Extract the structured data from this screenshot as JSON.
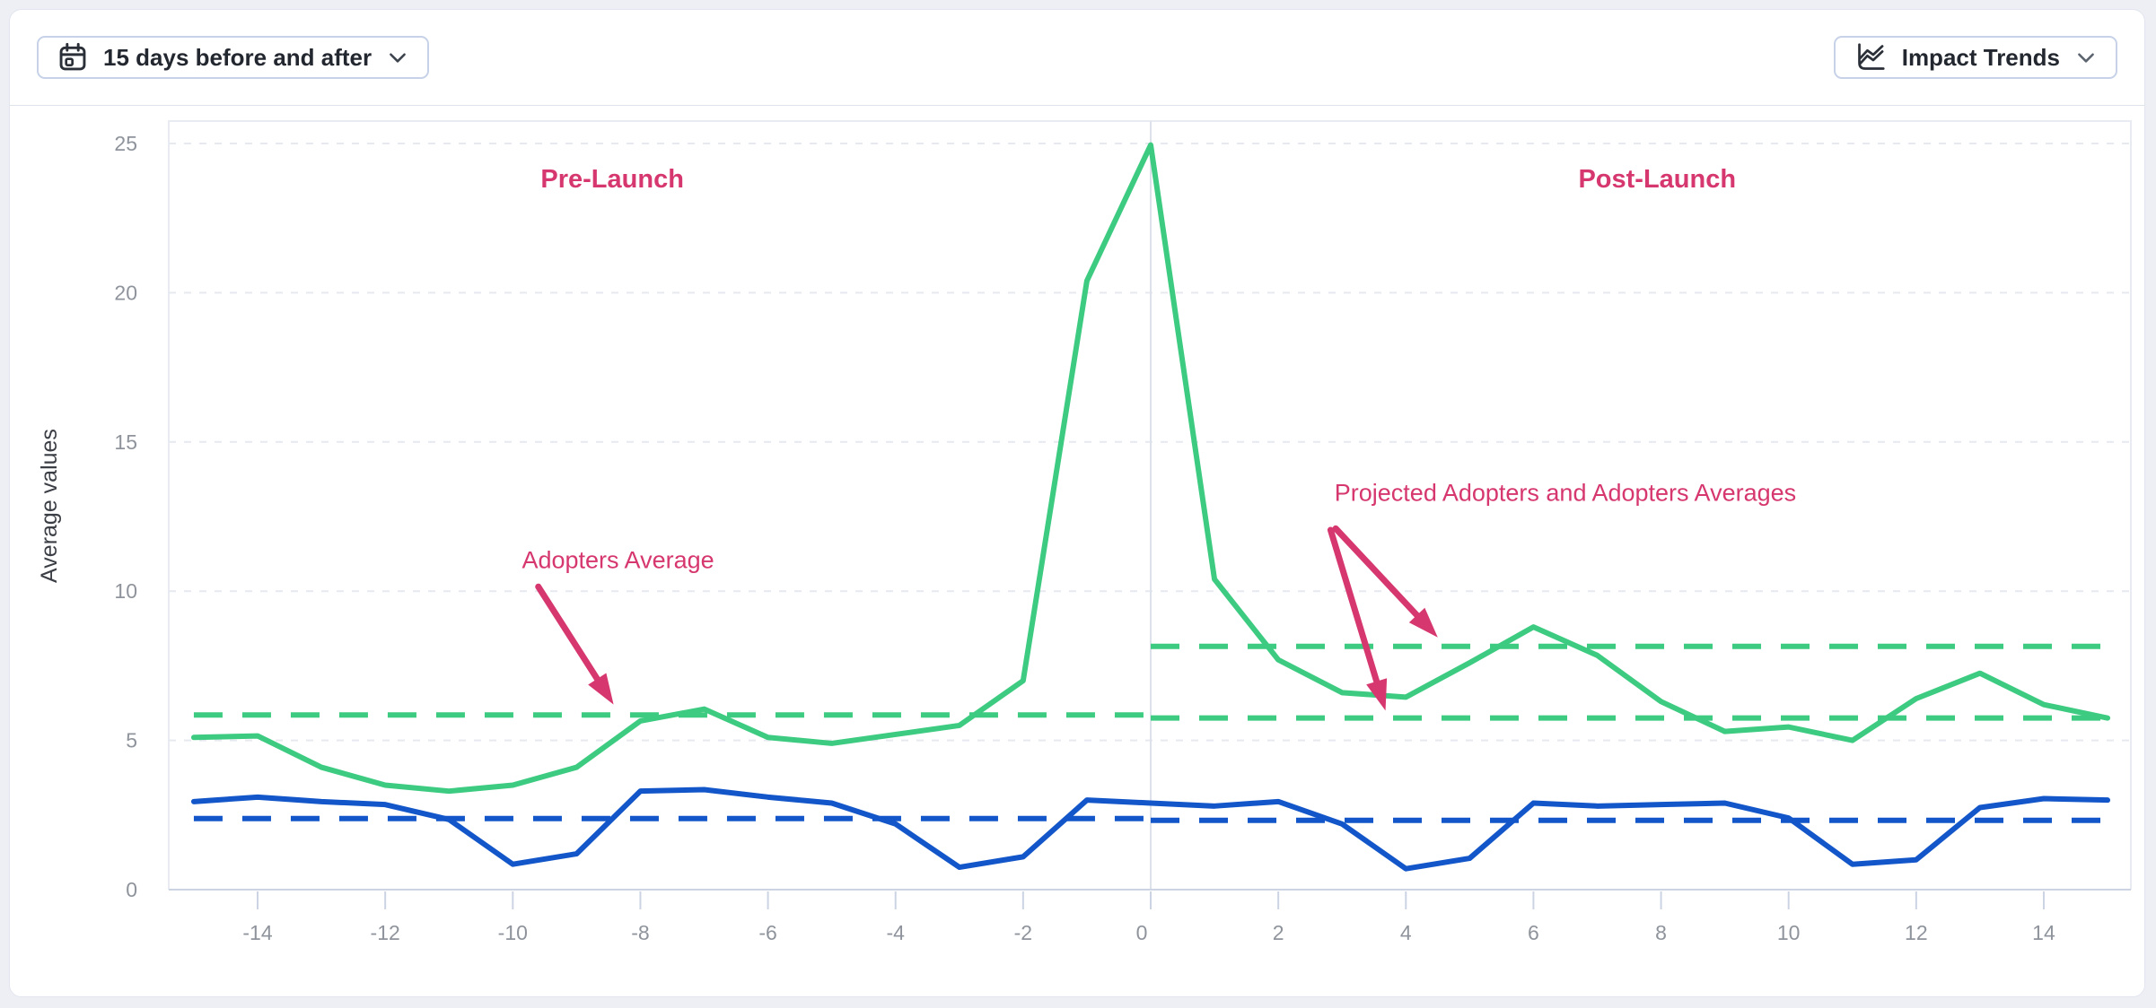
{
  "header": {
    "date_range_button": {
      "label": "15 days before and after",
      "icon": "calendar-icon",
      "chevron": "chevron-down-icon"
    },
    "trends_button": {
      "label": "Impact Trends",
      "icon": "line-chart-icon",
      "chevron": "chevron-down-icon"
    }
  },
  "colors": {
    "green": "#3ccb80",
    "blue": "#1356c9",
    "pink": "#d6376e",
    "grid": "#e7e9f0",
    "axis": "#ccd4e4",
    "tick_text": "#8f949c",
    "axis_title": "#3b3e45"
  },
  "chart_data": {
    "type": "line",
    "title": "",
    "xlabel": "",
    "ylabel": "Average values",
    "xlim": [
      -15,
      15
    ],
    "ylim": [
      0,
      25.75
    ],
    "x_ticks": [
      -14,
      -12,
      -10,
      -8,
      -6,
      -4,
      -2,
      0,
      2,
      4,
      6,
      8,
      10,
      12,
      14
    ],
    "y_ticks": [
      0,
      5,
      10,
      15,
      20,
      25
    ],
    "grid": true,
    "launch_divider_x": 0,
    "x": [
      -15,
      -14,
      -13,
      -12,
      -11,
      -10,
      -9,
      -8,
      -7,
      -6,
      -5,
      -4,
      -3,
      -2,
      -1,
      0,
      1,
      2,
      3,
      4,
      5,
      6,
      7,
      8,
      9,
      10,
      11,
      12,
      13,
      14,
      15
    ],
    "series": [
      {
        "id": "adopters-green",
        "color_key": "green",
        "values": [
          5.1,
          5.15,
          4.1,
          3.5,
          3.3,
          3.5,
          4.1,
          5.65,
          6.05,
          5.1,
          4.9,
          5.2,
          5.5,
          7.0,
          20.4,
          24.95,
          10.4,
          7.7,
          6.6,
          6.45,
          7.6,
          8.8,
          7.85,
          6.3,
          5.3,
          5.45,
          5.0,
          6.4,
          7.25,
          6.2,
          5.75
        ]
      },
      {
        "id": "comparison-blue",
        "color_key": "blue",
        "values": [
          2.95,
          3.1,
          2.95,
          2.85,
          2.35,
          0.85,
          1.2,
          3.3,
          3.35,
          3.1,
          2.9,
          2.2,
          0.75,
          1.1,
          3.0,
          2.9,
          2.8,
          2.95,
          2.2,
          0.7,
          1.05,
          2.9,
          2.8,
          2.85,
          2.9,
          2.4,
          0.85,
          1.0,
          2.75,
          3.05,
          3.0
        ]
      }
    ],
    "average_lines": [
      {
        "id": "adopters-average-pre",
        "color_key": "green",
        "x_from": -15,
        "x_to": 0,
        "value": 5.85
      },
      {
        "id": "adopters-average-post",
        "color_key": "green",
        "x_from": 0,
        "x_to": 15,
        "value": 5.75
      },
      {
        "id": "projected-adopters-average",
        "color_key": "green",
        "x_from": 0,
        "x_to": 15,
        "value": 8.15
      },
      {
        "id": "blue-average-pre",
        "color_key": "blue",
        "x_from": -15,
        "x_to": 0,
        "value": 2.38
      },
      {
        "id": "blue-average-post",
        "color_key": "blue",
        "x_from": 0,
        "x_to": 15,
        "value": 2.32
      }
    ],
    "annotations": [
      {
        "id": "pre-launch-label",
        "text": "Pre-Launch",
        "bold": true,
        "x": -8.44,
        "y": 23.8,
        "arrows": []
      },
      {
        "id": "post-launch-label",
        "text": "Post-Launch",
        "bold": true,
        "x": 7.94,
        "y": 23.8,
        "arrows": []
      },
      {
        "id": "adopters-average-label",
        "text": "Adopters Average",
        "bold": false,
        "x": -8.35,
        "y": 11.05,
        "arrows": [
          {
            "from": [
              -9.6,
              10.15
            ],
            "to": [
              -8.42,
              6.2
            ]
          }
        ]
      },
      {
        "id": "projected-adopters-label",
        "text": "Projected Adopters and Adopters Averages",
        "bold": false,
        "x": 6.5,
        "y": 13.3,
        "arrows": [
          {
            "from": [
              2.9,
              12.1
            ],
            "to": [
              4.5,
              8.45
            ]
          },
          {
            "from": [
              2.82,
              12.05
            ],
            "to": [
              3.68,
              6.0
            ]
          }
        ]
      }
    ]
  }
}
